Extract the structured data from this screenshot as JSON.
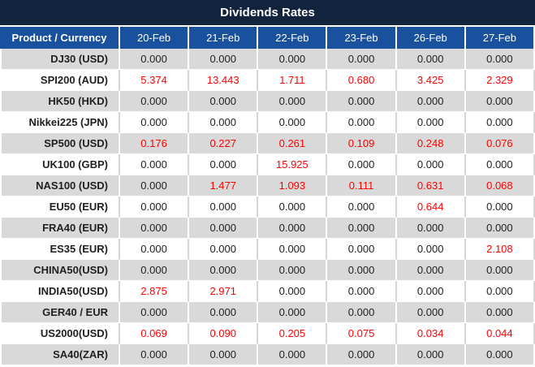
{
  "title": "Dividends Rates",
  "colors": {
    "title_bg": "#12233E",
    "header_bg": "#1A519E",
    "row_alt_bg": "#D9D9D9",
    "row_bg": "#FFFFFF",
    "value_highlight": "#FF0000",
    "value_text": "#212121",
    "header_text": "#FFFFFF"
  },
  "table": {
    "product_header": "Product / Currency",
    "date_headers": [
      "20-Feb",
      "21-Feb",
      "22-Feb",
      "23-Feb",
      "26-Feb",
      "27-Feb"
    ],
    "rows": [
      {
        "product": "DJ30 (USD)",
        "values": [
          "0.000",
          "0.000",
          "0.000",
          "0.000",
          "0.000",
          "0.000"
        ]
      },
      {
        "product": "SPI200 (AUD)",
        "values": [
          "5.374",
          "13.443",
          "1.711",
          "0.680",
          "3.425",
          "2.329"
        ]
      },
      {
        "product": "HK50 (HKD)",
        "values": [
          "0.000",
          "0.000",
          "0.000",
          "0.000",
          "0.000",
          "0.000"
        ]
      },
      {
        "product": "Nikkei225 (JPN)",
        "values": [
          "0.000",
          "0.000",
          "0.000",
          "0.000",
          "0.000",
          "0.000"
        ]
      },
      {
        "product": "SP500 (USD)",
        "values": [
          "0.176",
          "0.227",
          "0.261",
          "0.109",
          "0.248",
          "0.076"
        ]
      },
      {
        "product": "UK100 (GBP)",
        "values": [
          "0.000",
          "0.000",
          "15.925",
          "0.000",
          "0.000",
          "0.000"
        ]
      },
      {
        "product": "NAS100 (USD)",
        "values": [
          "0.000",
          "1.477",
          "1.093",
          "0.111",
          "0.631",
          "0.068"
        ]
      },
      {
        "product": "EU50 (EUR)",
        "values": [
          "0.000",
          "0.000",
          "0.000",
          "0.000",
          "0.644",
          "0.000"
        ]
      },
      {
        "product": "FRA40 (EUR)",
        "values": [
          "0.000",
          "0.000",
          "0.000",
          "0.000",
          "0.000",
          "0.000"
        ]
      },
      {
        "product": "ES35 (EUR)",
        "values": [
          "0.000",
          "0.000",
          "0.000",
          "0.000",
          "0.000",
          "2.108"
        ]
      },
      {
        "product": "CHINA50(USD)",
        "values": [
          "0.000",
          "0.000",
          "0.000",
          "0.000",
          "0.000",
          "0.000"
        ]
      },
      {
        "product": "INDIA50(USD)",
        "values": [
          "2.875",
          "2.971",
          "0.000",
          "0.000",
          "0.000",
          "0.000"
        ]
      },
      {
        "product": "GER40 / EUR",
        "values": [
          "0.000",
          "0.000",
          "0.000",
          "0.000",
          "0.000",
          "0.000"
        ]
      },
      {
        "product": "US2000(USD)",
        "values": [
          "0.069",
          "0.090",
          "0.205",
          "0.075",
          "0.034",
          "0.044"
        ]
      },
      {
        "product": "SA40(ZAR)",
        "values": [
          "0.000",
          "0.000",
          "0.000",
          "0.000",
          "0.000",
          "0.000"
        ]
      }
    ]
  }
}
